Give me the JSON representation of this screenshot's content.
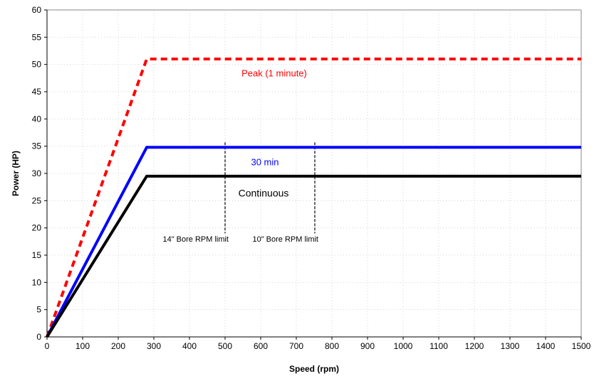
{
  "chart_data": {
    "type": "line",
    "title": "",
    "xlabel": "Speed (rpm)",
    "ylabel": "Power (HP)",
    "xlim": [
      0,
      1500
    ],
    "ylim": [
      0,
      60
    ],
    "x_ticks": [
      "0",
      "100",
      "200",
      "300",
      "400",
      "500",
      "600",
      "700",
      "800",
      "900",
      "1000",
      "1100",
      "1200",
      "1300",
      "1400",
      "1500"
    ],
    "y_ticks": [
      "0",
      "5",
      "10",
      "15",
      "20",
      "25",
      "30",
      "35",
      "40",
      "45",
      "50",
      "55",
      "60"
    ],
    "grid": true,
    "series": [
      {
        "label": "Peak (1 minute)",
        "color": "#ff0000",
        "style": "dashed",
        "points": [
          [
            0,
            0
          ],
          [
            280,
            51
          ],
          [
            1500,
            51
          ]
        ]
      },
      {
        "label": "30 min",
        "color": "#0000ff",
        "style": "solid",
        "points": [
          [
            0,
            0
          ],
          [
            280,
            34.8
          ],
          [
            1500,
            34.8
          ]
        ]
      },
      {
        "label": "Continuous",
        "color": "#000000",
        "style": "solid",
        "points": [
          [
            0,
            0
          ],
          [
            280,
            29.5
          ],
          [
            1500,
            29.5
          ]
        ]
      }
    ],
    "limits": [
      {
        "label": "14\" Bore RPM limit",
        "x": 500
      },
      {
        "label": "10\" Bore RPM limit",
        "x": 752
      }
    ]
  }
}
